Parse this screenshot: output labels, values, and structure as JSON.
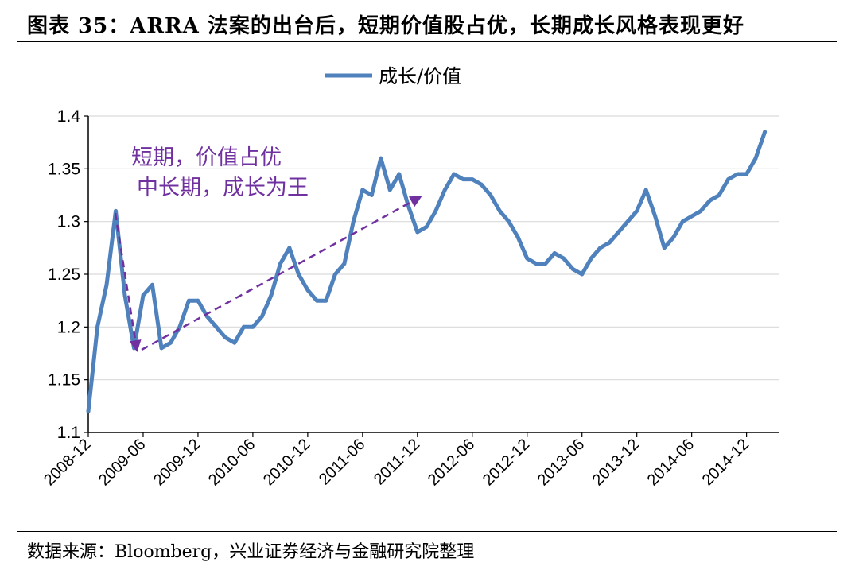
{
  "header": {
    "title": "图表 35：ARRA 法案的出台后，短期价值股占优，长期成长风格表现更好"
  },
  "footer": {
    "source": "数据来源：Bloomberg，兴业证券经济与金融研究院整理"
  },
  "colors": {
    "series": "#4F81BD",
    "annotation": "#7030A0",
    "grid": "#D9D9D9"
  },
  "chart_data": {
    "type": "line",
    "title": "",
    "xlabel": "",
    "ylabel": "",
    "ylim": [
      1.1,
      1.4
    ],
    "yticks": [
      "1.1",
      "1.15",
      "1.2",
      "1.25",
      "1.3",
      "1.35",
      "1.4"
    ],
    "xticks": [
      "2008-12",
      "2009-06",
      "2009-12",
      "2010-06",
      "2010-12",
      "2011-06",
      "2011-12",
      "2012-06",
      "2012-12",
      "2013-06",
      "2013-12",
      "2014-06",
      "2014-12"
    ],
    "grid": "horizontal",
    "legend": "top-center",
    "series": [
      {
        "name": "成长/价值",
        "x": [
          "2008-12",
          "2009-01",
          "2009-02",
          "2009-03",
          "2009-04",
          "2009-05",
          "2009-06",
          "2009-07",
          "2009-08",
          "2009-09",
          "2009-10",
          "2009-11",
          "2009-12",
          "2010-01",
          "2010-02",
          "2010-03",
          "2010-04",
          "2010-05",
          "2010-06",
          "2010-07",
          "2010-08",
          "2010-09",
          "2010-10",
          "2010-11",
          "2010-12",
          "2011-01",
          "2011-02",
          "2011-03",
          "2011-04",
          "2011-05",
          "2011-06",
          "2011-07",
          "2011-08",
          "2011-09",
          "2011-10",
          "2011-11",
          "2011-12",
          "2012-01",
          "2012-02",
          "2012-03",
          "2012-04",
          "2012-05",
          "2012-06",
          "2012-07",
          "2012-08",
          "2012-09",
          "2012-10",
          "2012-11",
          "2012-12",
          "2013-01",
          "2013-02",
          "2013-03",
          "2013-04",
          "2013-05",
          "2013-06",
          "2013-07",
          "2013-08",
          "2013-09",
          "2013-10",
          "2013-11",
          "2013-12",
          "2014-01",
          "2014-02",
          "2014-03",
          "2014-04",
          "2014-05",
          "2014-06",
          "2014-07",
          "2014-08",
          "2014-09",
          "2014-10",
          "2014-11",
          "2014-12",
          "2015-01",
          "2015-02"
        ],
        "values": [
          1.12,
          1.2,
          1.24,
          1.31,
          1.23,
          1.18,
          1.23,
          1.24,
          1.18,
          1.185,
          1.2,
          1.225,
          1.225,
          1.21,
          1.2,
          1.19,
          1.185,
          1.2,
          1.2,
          1.21,
          1.23,
          1.26,
          1.275,
          1.25,
          1.235,
          1.225,
          1.225,
          1.25,
          1.26,
          1.3,
          1.33,
          1.325,
          1.36,
          1.33,
          1.345,
          1.315,
          1.29,
          1.295,
          1.31,
          1.33,
          1.345,
          1.34,
          1.34,
          1.335,
          1.325,
          1.31,
          1.3,
          1.285,
          1.265,
          1.26,
          1.26,
          1.27,
          1.265,
          1.255,
          1.25,
          1.265,
          1.275,
          1.28,
          1.29,
          1.3,
          1.31,
          1.33,
          1.305,
          1.275,
          1.285,
          1.3,
          1.305,
          1.31,
          1.32,
          1.325,
          1.34,
          1.345,
          1.345,
          1.36,
          1.385
        ]
      }
    ],
    "annotations": [
      {
        "text": "短期，价值占优"
      },
      {
        "text": "中长期，成长为王"
      }
    ]
  }
}
